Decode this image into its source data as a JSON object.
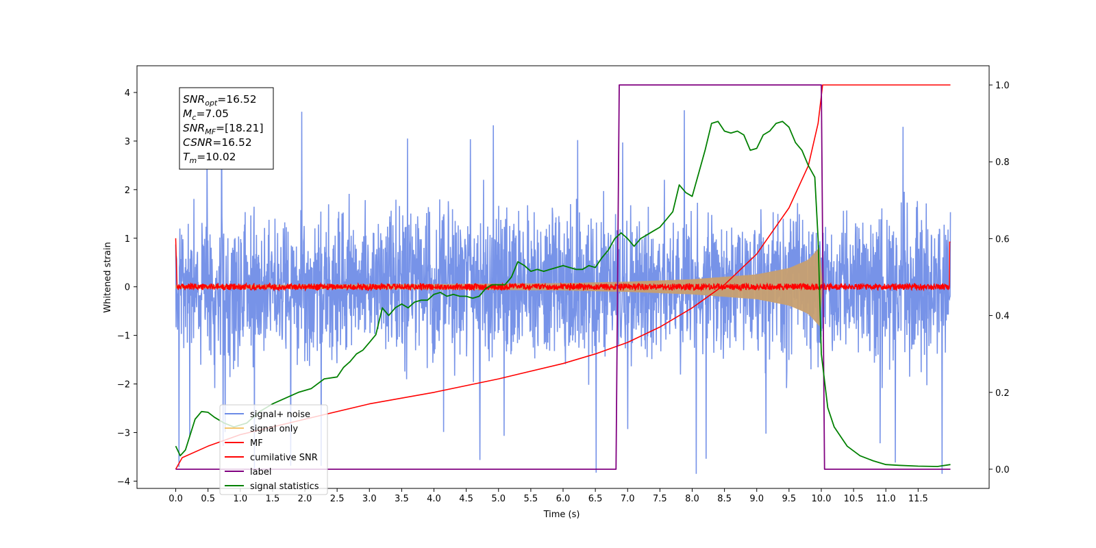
{
  "chart_data": {
    "type": "line",
    "xlabel": "Time (s)",
    "ylabel": "Whitened strain",
    "xlim": [
      -0.6,
      12.6
    ],
    "ylim_left": [
      -4.15,
      4.55
    ],
    "ylim_right": [
      -0.05,
      1.05
    ],
    "x_ticks": [
      0.0,
      0.5,
      1.0,
      1.5,
      2.0,
      2.5,
      3.0,
      3.5,
      4.0,
      4.5,
      5.0,
      5.5,
      6.0,
      6.5,
      7.0,
      7.5,
      8.0,
      8.5,
      9.0,
      9.5,
      10.0,
      10.5,
      11.0,
      11.5
    ],
    "x_tick_labels": [
      "0.0",
      "0.5",
      "1.0",
      "1.5",
      "2.0",
      "2.5",
      "3.0",
      "3.5",
      "4.0",
      "4.5",
      "5.0",
      "5.5",
      "6.0",
      "6.5",
      "7.0",
      "7.5",
      "8.0",
      "8.5",
      "9.0",
      "9.5",
      "10.0",
      "10.5",
      "11.0",
      "11.5"
    ],
    "y_ticks_left": [
      4,
      3,
      2,
      1,
      0,
      -1,
      -2,
      -3,
      -4
    ],
    "y_tick_labels_left": [
      "4",
      "3",
      "2",
      "1",
      "0",
      "−1",
      "−2",
      "−3",
      "−4"
    ],
    "y_ticks_right": [
      1.0,
      0.8,
      0.6,
      0.4,
      0.2,
      0.0
    ],
    "y_tick_labels_right": [
      "1.0",
      "0.8",
      "0.6",
      "0.4",
      "0.2",
      "0.0"
    ],
    "grid": false,
    "legend_position": "lower-left",
    "annotations": [
      {
        "base": "SNR",
        "sub": "opt",
        "value": "=16.52"
      },
      {
        "base": "M",
        "sub": "c",
        "value": "=7.05"
      },
      {
        "base": "SNR",
        "sub": "MF",
        "value": "=[18.21]"
      },
      {
        "base": "CSNR",
        "sub": "",
        "value": "=16.52"
      },
      {
        "base": "T",
        "sub": "m",
        "value": "=10.02"
      }
    ],
    "series": [
      {
        "name": "signal+ noise",
        "axis": "left",
        "color": "#6b8ae6",
        "description": "white noise, approx amplitude +/-2.5 with peaks to ~4.2 and dips to ~-3.8",
        "x_range": [
          0.0,
          12.0
        ],
        "envelope_max": 4.2,
        "envelope_min": -3.85
      },
      {
        "name": "signal only",
        "axis": "left",
        "color": "#f5c56b",
        "chirp_envelope": {
          "x": [
            0.0,
            2.0,
            4.0,
            6.0,
            7.0,
            8.0,
            9.0,
            9.5,
            9.8,
            9.97,
            10.02
          ],
          "y": [
            0.03,
            0.04,
            0.05,
            0.07,
            0.1,
            0.15,
            0.25,
            0.38,
            0.55,
            0.8,
            0.0
          ]
        }
      },
      {
        "name": "MF",
        "axis": "left",
        "color": "#ff0000",
        "description": "noise around 0 with amplitude ~0.08; spike to 1.0 at start and 0.9 at end",
        "x_range": [
          0.0,
          12.0
        ],
        "start_value": 1.0,
        "end_value": 0.92
      },
      {
        "name": "cumilative SNR",
        "axis": "right",
        "color": "#ff0000",
        "x": [
          0.0,
          0.1,
          0.5,
          1.0,
          2.0,
          3.0,
          4.0,
          5.0,
          6.0,
          6.5,
          7.0,
          7.5,
          8.0,
          8.5,
          9.0,
          9.5,
          9.8,
          9.95,
          10.02,
          12.0
        ],
        "y": [
          0.0,
          0.03,
          0.06,
          0.09,
          0.13,
          0.17,
          0.2,
          0.235,
          0.275,
          0.3,
          0.33,
          0.37,
          0.42,
          0.48,
          0.56,
          0.68,
          0.79,
          0.9,
          1.0,
          1.0
        ]
      },
      {
        "name": "label",
        "axis": "right",
        "color": "#800080",
        "x": [
          0.0,
          6.82,
          6.87,
          10.0,
          10.05,
          12.0
        ],
        "y": [
          0.0,
          0.0,
          1.0,
          1.0,
          0.0,
          0.0
        ]
      },
      {
        "name": "signal statistics",
        "axis": "right",
        "color": "#008000",
        "x": [
          0.0,
          0.07,
          0.15,
          0.3,
          0.4,
          0.5,
          0.6,
          0.75,
          0.9,
          1.1,
          1.3,
          1.5,
          1.7,
          1.9,
          2.1,
          2.3,
          2.5,
          2.6,
          2.7,
          2.8,
          2.9,
          3.0,
          3.1,
          3.2,
          3.3,
          3.4,
          3.5,
          3.6,
          3.7,
          3.8,
          3.9,
          4.0,
          4.1,
          4.2,
          4.3,
          4.4,
          4.5,
          4.6,
          4.7,
          4.8,
          4.9,
          5.0,
          5.1,
          5.2,
          5.3,
          5.4,
          5.5,
          5.6,
          5.7,
          5.8,
          5.9,
          6.0,
          6.1,
          6.2,
          6.3,
          6.4,
          6.5,
          6.6,
          6.7,
          6.8,
          6.9,
          7.0,
          7.1,
          7.2,
          7.3,
          7.4,
          7.5,
          7.6,
          7.7,
          7.8,
          7.9,
          8.0,
          8.1,
          8.2,
          8.3,
          8.4,
          8.5,
          8.6,
          8.7,
          8.8,
          8.9,
          9.0,
          9.1,
          9.2,
          9.3,
          9.4,
          9.5,
          9.6,
          9.7,
          9.8,
          9.9,
          9.95,
          10.0,
          10.1,
          10.2,
          10.4,
          10.6,
          10.8,
          11.0,
          11.2,
          11.5,
          11.8,
          12.0
        ],
        "y": [
          0.06,
          0.035,
          0.05,
          0.13,
          0.15,
          0.148,
          0.135,
          0.12,
          0.11,
          0.12,
          0.15,
          0.17,
          0.185,
          0.2,
          0.21,
          0.235,
          0.24,
          0.265,
          0.28,
          0.3,
          0.31,
          0.33,
          0.35,
          0.42,
          0.4,
          0.42,
          0.43,
          0.42,
          0.435,
          0.44,
          0.44,
          0.455,
          0.46,
          0.45,
          0.455,
          0.45,
          0.45,
          0.445,
          0.45,
          0.47,
          0.48,
          0.48,
          0.48,
          0.5,
          0.54,
          0.53,
          0.515,
          0.52,
          0.515,
          0.52,
          0.525,
          0.53,
          0.525,
          0.52,
          0.52,
          0.53,
          0.525,
          0.55,
          0.57,
          0.6,
          0.615,
          0.6,
          0.58,
          0.6,
          0.61,
          0.62,
          0.63,
          0.65,
          0.67,
          0.74,
          0.72,
          0.71,
          0.77,
          0.83,
          0.9,
          0.905,
          0.88,
          0.875,
          0.88,
          0.87,
          0.83,
          0.835,
          0.87,
          0.88,
          0.9,
          0.905,
          0.89,
          0.85,
          0.83,
          0.79,
          0.76,
          0.6,
          0.3,
          0.16,
          0.11,
          0.06,
          0.035,
          0.022,
          0.012,
          0.01,
          0.008,
          0.007,
          0.012
        ]
      }
    ]
  }
}
